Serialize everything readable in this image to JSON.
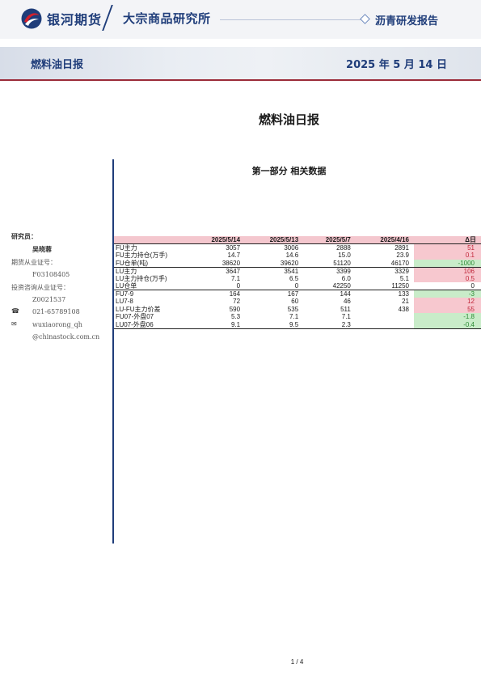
{
  "header": {
    "brand": "银河期货",
    "institute": "大宗商品研究所",
    "report_type": "沥青研发报告"
  },
  "banner": {
    "title": "燃料油日报",
    "date": "2025 年 5 月 14 日"
  },
  "doc_title": "燃料油日报",
  "sidebar": {
    "researcher_label": "研究员：",
    "researcher_name": "吴晓蓉",
    "futures_cert_label": "期货从业证号：",
    "futures_cert": "F03108405",
    "invest_cert_label": "投资咨询从业证号：",
    "invest_cert": "Z0021537",
    "phone_icon": "phone-icon",
    "phone": "021-65789108",
    "mail_icon": "mail-icon",
    "email_line1": "wuxiaorong_qh",
    "email_line2": "@chinastock.com.cn"
  },
  "section": {
    "title": "第一部分 相关数据"
  },
  "table": {
    "headers": [
      "",
      "2025/5/14",
      "2025/5/13",
      "2025/5/7",
      "2025/4/16",
      "Δ日"
    ],
    "rows": [
      {
        "name": "FU主力",
        "v1": "3057",
        "v2": "3006",
        "v3": "2888",
        "v4": "2891",
        "delta": "51",
        "sign": "pos"
      },
      {
        "name": "FU主力持仓(万手)",
        "v1": "14.7",
        "v2": "14.6",
        "v3": "15.0",
        "v4": "23.9",
        "delta": "0.1",
        "sign": "pos"
      },
      {
        "name": "FU仓单(吨)",
        "v1": "38620",
        "v2": "39620",
        "v3": "51120",
        "v4": "46170",
        "delta": "-1000",
        "sign": "neg"
      },
      {
        "name": "LU主力",
        "v1": "3647",
        "v2": "3541",
        "v3": "3399",
        "v4": "3329",
        "delta": "106",
        "sign": "pos"
      },
      {
        "name": "LU主力持仓(万手)",
        "v1": "7.1",
        "v2": "6.5",
        "v3": "6.0",
        "v4": "5.1",
        "delta": "0.5",
        "sign": "pos"
      },
      {
        "name": "LU仓单",
        "v1": "0",
        "v2": "0",
        "v3": "42250",
        "v4": "11250",
        "delta": "0",
        "sign": "zero"
      },
      {
        "name": "FU7-9",
        "v1": "164",
        "v2": "167",
        "v3": "144",
        "v4": "133",
        "delta": "-3",
        "sign": "neg"
      },
      {
        "name": "LU7-8",
        "v1": "72",
        "v2": "60",
        "v3": "46",
        "v4": "21",
        "delta": "12",
        "sign": "pos"
      },
      {
        "name": "LU-FU主力价差",
        "v1": "590",
        "v2": "535",
        "v3": "511",
        "v4": "438",
        "delta": "55",
        "sign": "pos"
      },
      {
        "name": "FU07-外盘07",
        "v1": "5.3",
        "v2": "7.1",
        "v3": "7.1",
        "v4": "",
        "delta": "-1.8",
        "sign": "neg"
      },
      {
        "name": "LU07-外盘06",
        "v1": "9.1",
        "v2": "9.5",
        "v3": "2.3",
        "v4": "",
        "delta": "-0.4",
        "sign": "neg"
      }
    ]
  },
  "footer": {
    "page": "1 / 4"
  },
  "colors": {
    "brand_blue": "#1f3d7a",
    "accent_red": "#9b2b39",
    "positive_bg": "#f7c8cf",
    "negative_bg": "#c9ecc9"
  }
}
